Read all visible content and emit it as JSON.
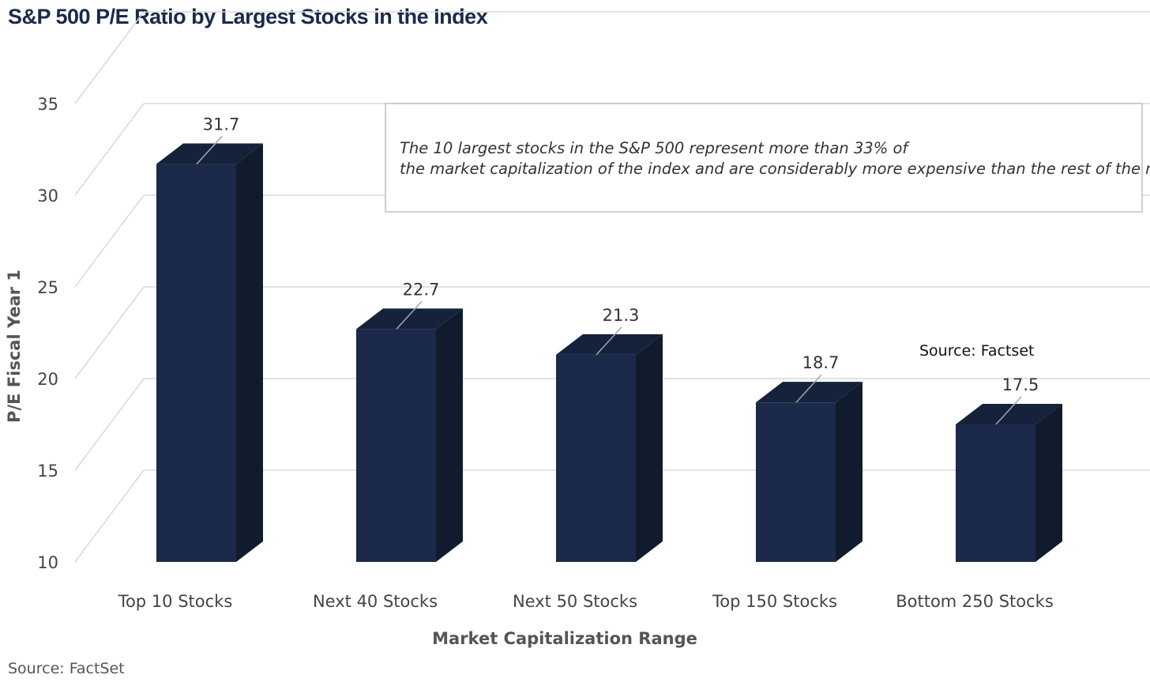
{
  "title": "S&P 500 P/E Ratio by Largest Stocks in the Index",
  "footer_source": "Source: FactSet",
  "chart_data": {
    "type": "bar",
    "title": "S&P 500 P/E Ratio by Largest Stocks in the Index",
    "categories": [
      "Top 10 Stocks",
      "Next 40 Stocks",
      "Next 50 Stocks",
      "Top 150 Stocks",
      "Bottom 250 Stocks"
    ],
    "values": [
      31.7,
      22.7,
      21.3,
      18.7,
      17.5
    ],
    "data_labels": [
      "31.7",
      "22.7",
      "21.3",
      "18.7",
      "17.5"
    ],
    "xlabel": "Market Capitalization Range",
    "ylabel": "P/E Fiscal Year 1",
    "ylim": [
      10,
      35
    ],
    "yticks": [
      10,
      15,
      20,
      25,
      30,
      35
    ],
    "ytick_labels": [
      "10",
      "15",
      "20",
      "25",
      "30",
      "35"
    ],
    "grid": true,
    "style": "3d-column",
    "annotation": "The 10 largest stocks in the S&P 500 represent more than 33% of the market capitalization of the index and are considerably more expensive than the rest of the market.",
    "inner_source": "Source: Factset"
  },
  "colors": {
    "bar_front": "#1b2a4a",
    "bar_side": "#111b2e",
    "bar_top": "#15223b",
    "grid": "#d9d9d9",
    "title": "#1b2a4a"
  }
}
